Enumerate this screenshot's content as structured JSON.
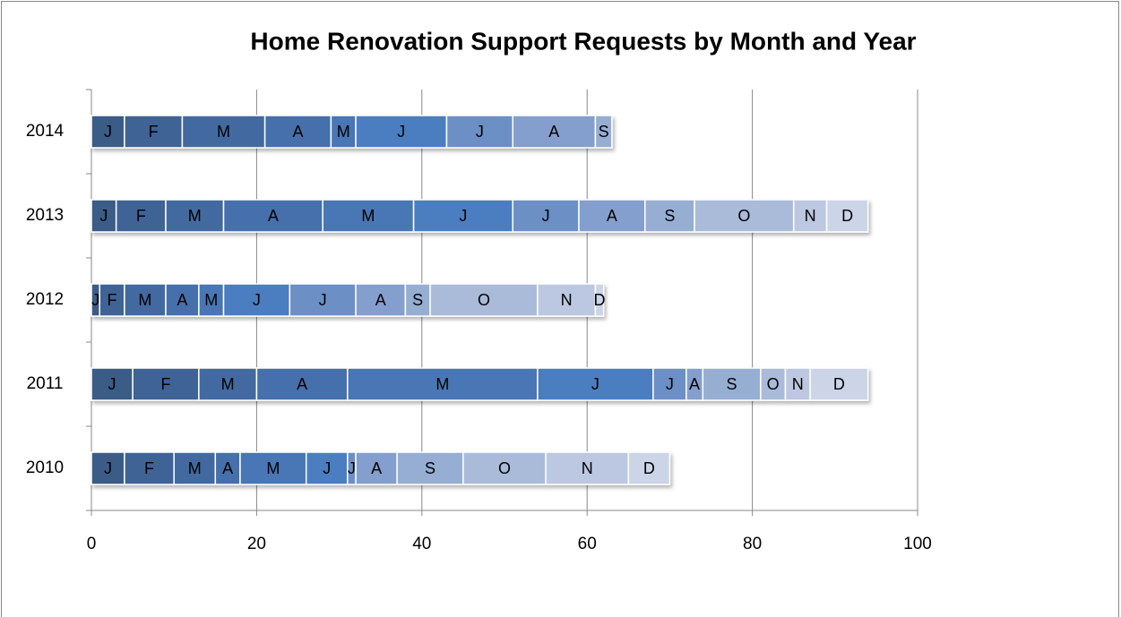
{
  "chart_data": {
    "type": "stacked_barh",
    "title": "Home Renovation Support Requests by Month and Year",
    "categories": [
      "2014",
      "2013",
      "2012",
      "2011",
      "2010"
    ],
    "series": [
      {
        "name": "J",
        "color": "#3b5b86",
        "values": [
          4,
          3,
          1,
          5,
          4
        ]
      },
      {
        "name": "F",
        "color": "#3f6496",
        "values": [
          7,
          6,
          3,
          8,
          6
        ]
      },
      {
        "name": "M",
        "color": "#426aa0",
        "values": [
          10,
          7,
          5,
          7,
          5
        ]
      },
      {
        "name": "A",
        "color": "#456fab",
        "values": [
          8,
          12,
          4,
          11,
          3
        ]
      },
      {
        "name": "M",
        "color": "#4876b4",
        "values": [
          3,
          11,
          3,
          23,
          8
        ]
      },
      {
        "name": "J",
        "color": "#4b7ec0",
        "values": [
          11,
          12,
          8,
          14,
          5
        ]
      },
      {
        "name": "J",
        "color": "#6c8fc6",
        "values": [
          8,
          8,
          8,
          4,
          1
        ]
      },
      {
        "name": "A",
        "color": "#849fcd",
        "values": [
          10,
          8,
          6,
          2,
          5
        ]
      },
      {
        "name": "S",
        "color": "#97aed3",
        "values": [
          2,
          6,
          3,
          7,
          8
        ]
      },
      {
        "name": "O",
        "color": "#aabbda",
        "values": [
          null,
          12,
          13,
          3,
          10
        ]
      },
      {
        "name": "N",
        "color": "#bcc8e1",
        "values": [
          null,
          4,
          7,
          3,
          10
        ]
      },
      {
        "name": "D",
        "color": "#ccd4e8",
        "values": [
          null,
          5,
          1,
          7,
          5
        ]
      }
    ],
    "xlim": [
      0,
      100
    ],
    "xticks": [
      0,
      20,
      40,
      60,
      80,
      100
    ],
    "grid": true
  }
}
